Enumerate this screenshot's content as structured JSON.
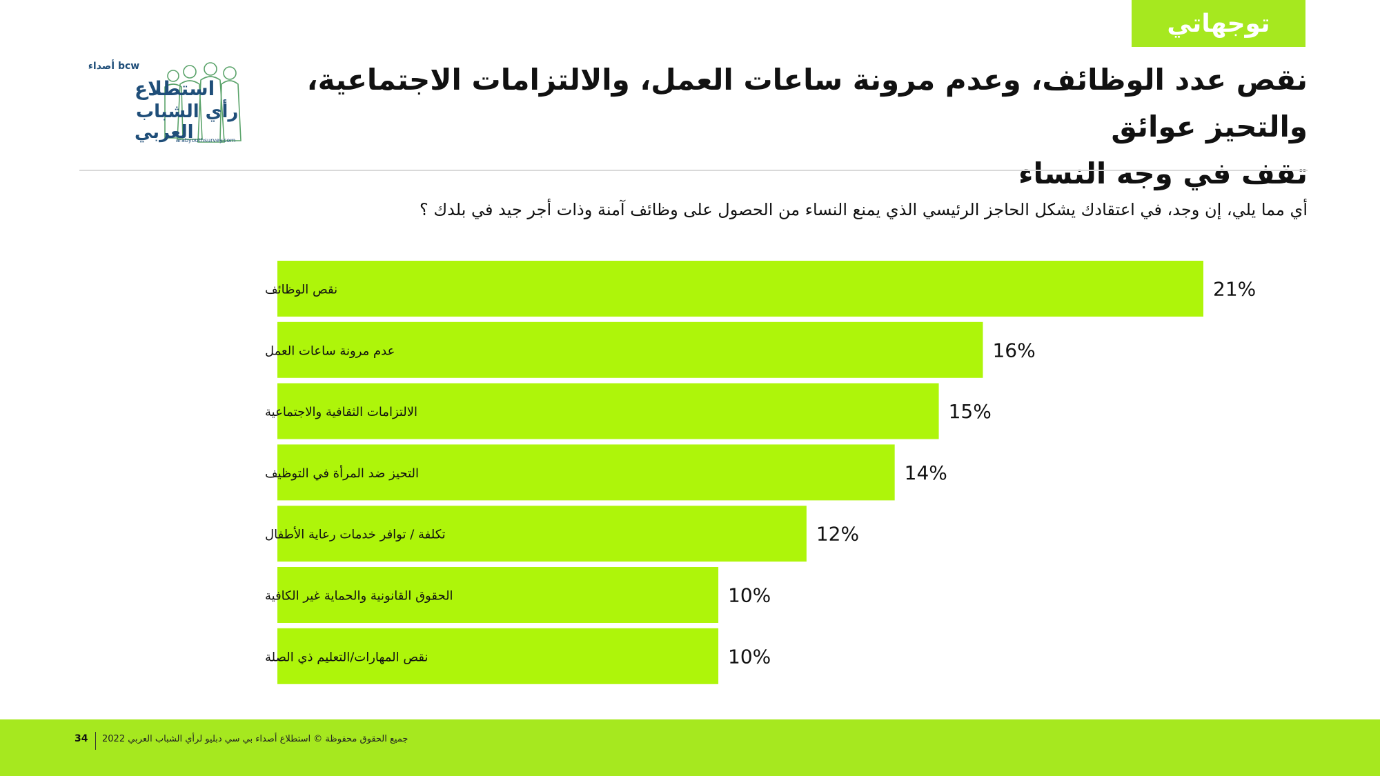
{
  "header": {
    "tag_label": "توجهاتي",
    "title_line1": "نقص عدد الوظائف، وعدم مرونة ساعات العمل، والالتزامات  الاجتماعية، والتحيز عوائق",
    "title_line2": "تقف في وجه النساء"
  },
  "logo": {
    "brand_small": "bcw أصداء",
    "line1": "استطلاع",
    "line2": "رأي الشباب",
    "line3": "العربي",
    "url": "arabyouthsurvey.com"
  },
  "question": "أي مما يلي، إن وجد، في اعتقادك يشكل الحاجز الرئيسي الذي يمنع النساء من الحصول على وظائف آمنة وذات أجر جيد في بلدك ؟",
  "chart_data": {
    "type": "bar",
    "orientation": "horizontal",
    "categories": [
      "نقص الوظائف",
      "عدم مرونة ساعات العمل",
      "الالتزامات الثقافية والاجتماعية",
      "التحيز ضد المرأة في التوظيف",
      "تكلفة / توافر خدمات رعاية الأطفال",
      "الحقوق القانونية والحماية غير الكافية",
      "نقص المهارات/التعليم ذي الصلة"
    ],
    "values": [
      21,
      16,
      15,
      14,
      12,
      10,
      10
    ],
    "value_labels": [
      "21%",
      "16%",
      "15%",
      "14%",
      "12%",
      "10%",
      "10%"
    ],
    "xlim": [
      0,
      21
    ],
    "bar_color": "#aef50a",
    "grid": false,
    "legend": "none"
  },
  "footer": {
    "page_number": "34",
    "copyright": "جميع الحقوق محفوظة © استطلاع أصداء بي سي دبليو لرأي الشباب العربي 2022"
  },
  "colors": {
    "accent": "#a6e81f",
    "logo_blue": "#1f4e79",
    "logo_green": "#5aa36a"
  }
}
